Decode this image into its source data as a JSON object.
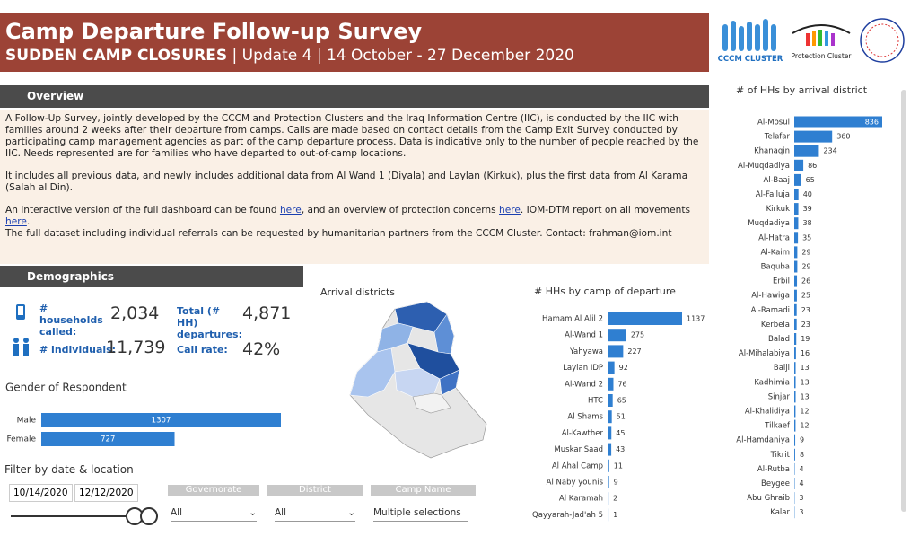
{
  "header": {
    "title": "Camp Departure Follow-up Survey",
    "subtitle_bold": "SUDDEN CAMP CLOSURES",
    "subtitle": "| Update 4 | 14 October - 27 December 2020"
  },
  "logos": [
    "CCCM CLUSTER",
    "Protection Cluster"
  ],
  "overview": {
    "heading": "Overview",
    "p1": "A Follow-Up Survey, jointly developed by the CCCM and Protection Clusters and the Iraq Information Centre (IIC), is conducted by the IIC with families around 2 weeks after their departure from camps. Calls are made based on contact details from the Camp Exit Survey conducted by participating camp management agencies as part of the camp departure process. Data is indicative only to the number of people reached by the IIC. Needs represented are for families who have departed to out-of-camp locations.",
    "p2": "It includes all previous data, and newly includes additional data from Al Wand 1 (Diyala) and Laylan (Kirkuk), plus the first data from Al Karama (Salah al Din).",
    "p3": [
      "An interactive version of the full dashboard can be found ",
      "here",
      ", and an overview of protection concerns ",
      "here",
      ". IOM-DTM report on all movements ",
      "here",
      "."
    ],
    "p4": "The full dataset including individual referrals can be requested by humanitarian partners from the CCCM Cluster. Contact: frahman@iom.int"
  },
  "demographics": {
    "heading": "Demographics",
    "kpis": [
      {
        "label": "# households called:",
        "value": "2,034"
      },
      {
        "label": "Total (# HH) departures:",
        "value": "4,871"
      },
      {
        "label": "# individuals:",
        "value": "11,739"
      },
      {
        "label": "Call rate:",
        "value": "42%"
      }
    ]
  },
  "filters": {
    "heading": "Filter by date & location",
    "dates": [
      "10/14/2020",
      "12/12/2020"
    ],
    "dropdowns": [
      {
        "label": "Governorate",
        "value": "All"
      },
      {
        "label": "District",
        "value": "All"
      },
      {
        "label": "Camp Name",
        "value": "Multiple selections"
      }
    ]
  },
  "map": {
    "title": "Arrival districts"
  },
  "chart_data": [
    {
      "type": "bar",
      "orientation": "horizontal",
      "title": "Gender of Respondent",
      "color": "#2f7fd1",
      "categories": [
        "Male",
        "Female"
      ],
      "values": [
        1307,
        727
      ]
    },
    {
      "type": "bar",
      "orientation": "horizontal",
      "title": "# HHs by camp of departure",
      "color": "#2f7fd1",
      "categories": [
        "Hamam Al Alil 2",
        "Al-Wand 1",
        "Yahyawa",
        "Laylan IDP",
        "Al-Wand 2",
        "HTC",
        "Al Shams",
        "Al-Kawther",
        "Muskar Saad",
        "Al Ahal Camp",
        "Al Naby younis",
        "Al Karamah",
        "Qayyarah-Jad'ah 5"
      ],
      "values": [
        1137,
        275,
        227,
        92,
        76,
        65,
        51,
        45,
        43,
        11,
        9,
        2,
        1
      ]
    },
    {
      "type": "bar",
      "orientation": "horizontal",
      "title": "# of HHs by arrival district",
      "color": "#2f7fd1",
      "categories": [
        "Al-Mosul",
        "Telafar",
        "Khanaqin",
        "Al-Muqdadiya",
        "Al-Baaj",
        "Al-Falluja",
        "Kirkuk",
        "Muqdadiya",
        "Al-Hatra",
        "Al-Kaim",
        "Baquba",
        "Erbil",
        "Al-Hawiga",
        "Al-Ramadi",
        "Kerbela",
        "Balad",
        "Al-Mihalabiya",
        "Baiji",
        "Kadhimia",
        "Sinjar",
        "Al-Khalidiya",
        "Tilkaef",
        "Al-Hamdaniya",
        "Tikrit",
        "Al-Rutba",
        "Beygee",
        "Abu Ghraib",
        "Kalar"
      ],
      "values": [
        836,
        360,
        234,
        86,
        65,
        40,
        39,
        38,
        35,
        29,
        29,
        26,
        25,
        23,
        23,
        19,
        16,
        13,
        13,
        13,
        12,
        12,
        9,
        8,
        4,
        4,
        3,
        3
      ]
    }
  ]
}
